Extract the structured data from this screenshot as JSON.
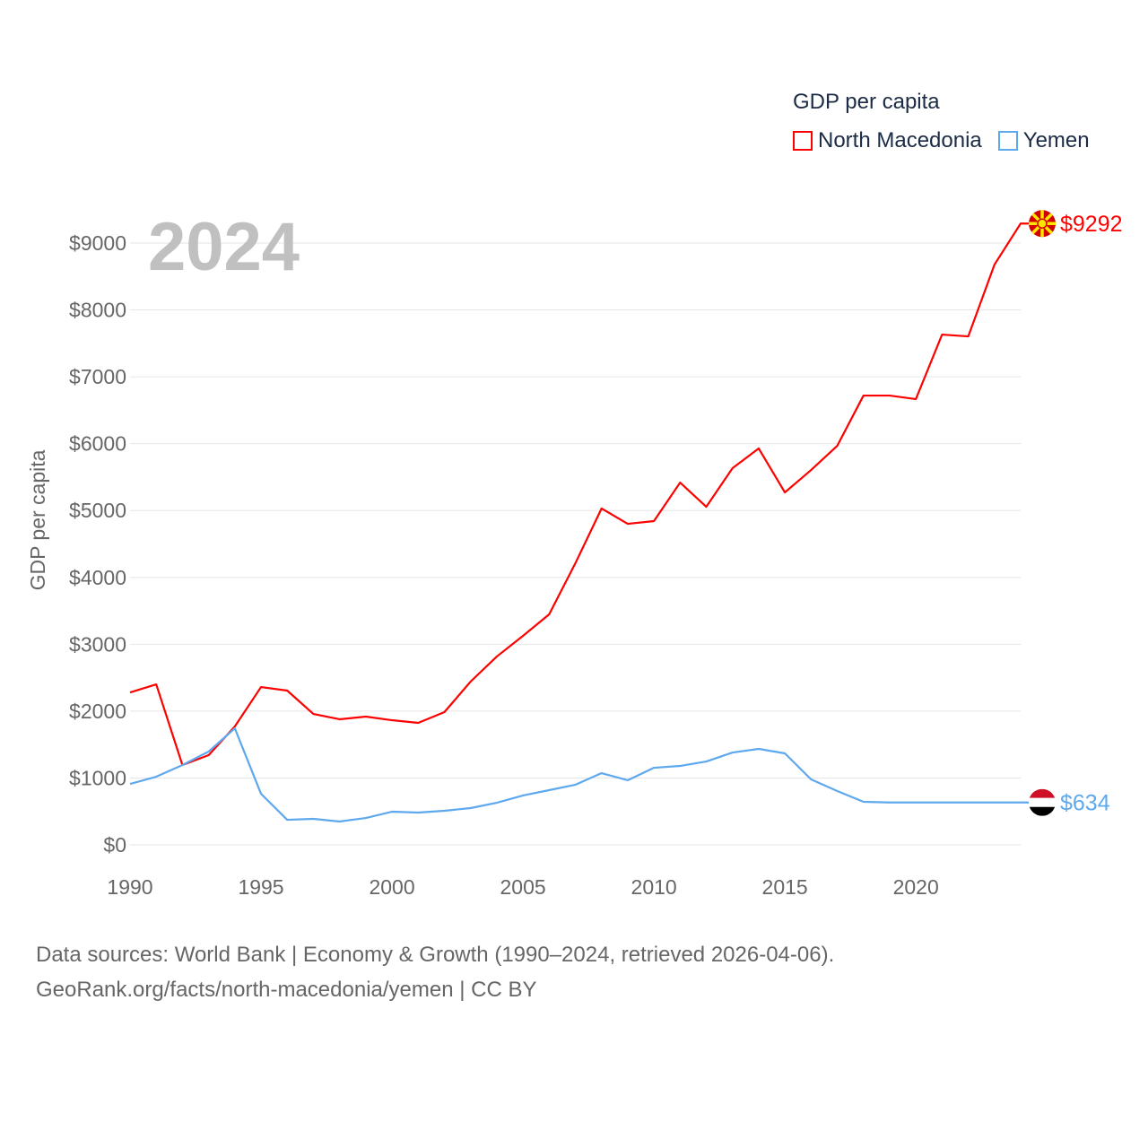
{
  "chart_data": {
    "type": "line",
    "title": "",
    "year_label": "2024",
    "xlabel": "",
    "ylabel": "GDP per capita",
    "legend_title": "GDP per capita",
    "legend_position": "top-right",
    "xlim": [
      1990,
      2024
    ],
    "ylim": [
      0,
      9000
    ],
    "x_ticks": [
      1990,
      1995,
      2000,
      2005,
      2010,
      2015,
      2020
    ],
    "x_tick_labels": [
      "1990",
      "1995",
      "2000",
      "2005",
      "2010",
      "2015",
      "2020"
    ],
    "y_ticks": [
      0,
      1000,
      2000,
      3000,
      4000,
      5000,
      6000,
      7000,
      8000,
      9000
    ],
    "y_tick_labels": [
      "$0",
      "$1000",
      "$2000",
      "$3000",
      "$4000",
      "$5000",
      "$6000",
      "$7000",
      "$8000",
      "$9000"
    ],
    "grid": true,
    "x": [
      1990,
      1991,
      1992,
      1993,
      1994,
      1995,
      1996,
      1997,
      1998,
      1999,
      2000,
      2001,
      2002,
      2003,
      2004,
      2005,
      2006,
      2007,
      2008,
      2009,
      2010,
      2011,
      2012,
      2013,
      2014,
      2015,
      2016,
      2017,
      2018,
      2019,
      2020,
      2021,
      2022,
      2023,
      2024
    ],
    "series": [
      {
        "name": "North Macedonia",
        "color": "#ff0000",
        "end_label": "$9292",
        "values": [
          2280,
          2400,
          1194,
          1341,
          1770,
          2360,
          2307,
          1958,
          1878,
          1918,
          1864,
          1824,
          1985,
          2441,
          2816,
          3125,
          3447,
          4211,
          5030,
          4801,
          4842,
          5418,
          5056,
          5633,
          5928,
          5271,
          5606,
          5968,
          6719,
          6719,
          6666,
          7631,
          7604,
          8677,
          9292
        ]
      },
      {
        "name": "Yemen",
        "color": "#5ea8ee",
        "end_label": "$634",
        "values": [
          912,
          1019,
          1194,
          1395,
          1743,
          764,
          375,
          389,
          349,
          402,
          496,
          483,
          510,
          550,
          630,
          738,
          818,
          899,
          1073,
          966,
          1153,
          1180,
          1247,
          1381,
          1435,
          1368,
          979,
          805,
          644,
          634,
          634,
          634,
          634,
          634,
          634
        ]
      }
    ]
  },
  "footer": {
    "line1": "Data sources: World Bank | Economy & Growth (1990–2024, retrieved 2026-04-06).",
    "line2": "GeoRank.org/facts/north-macedonia/yemen | CC BY"
  }
}
